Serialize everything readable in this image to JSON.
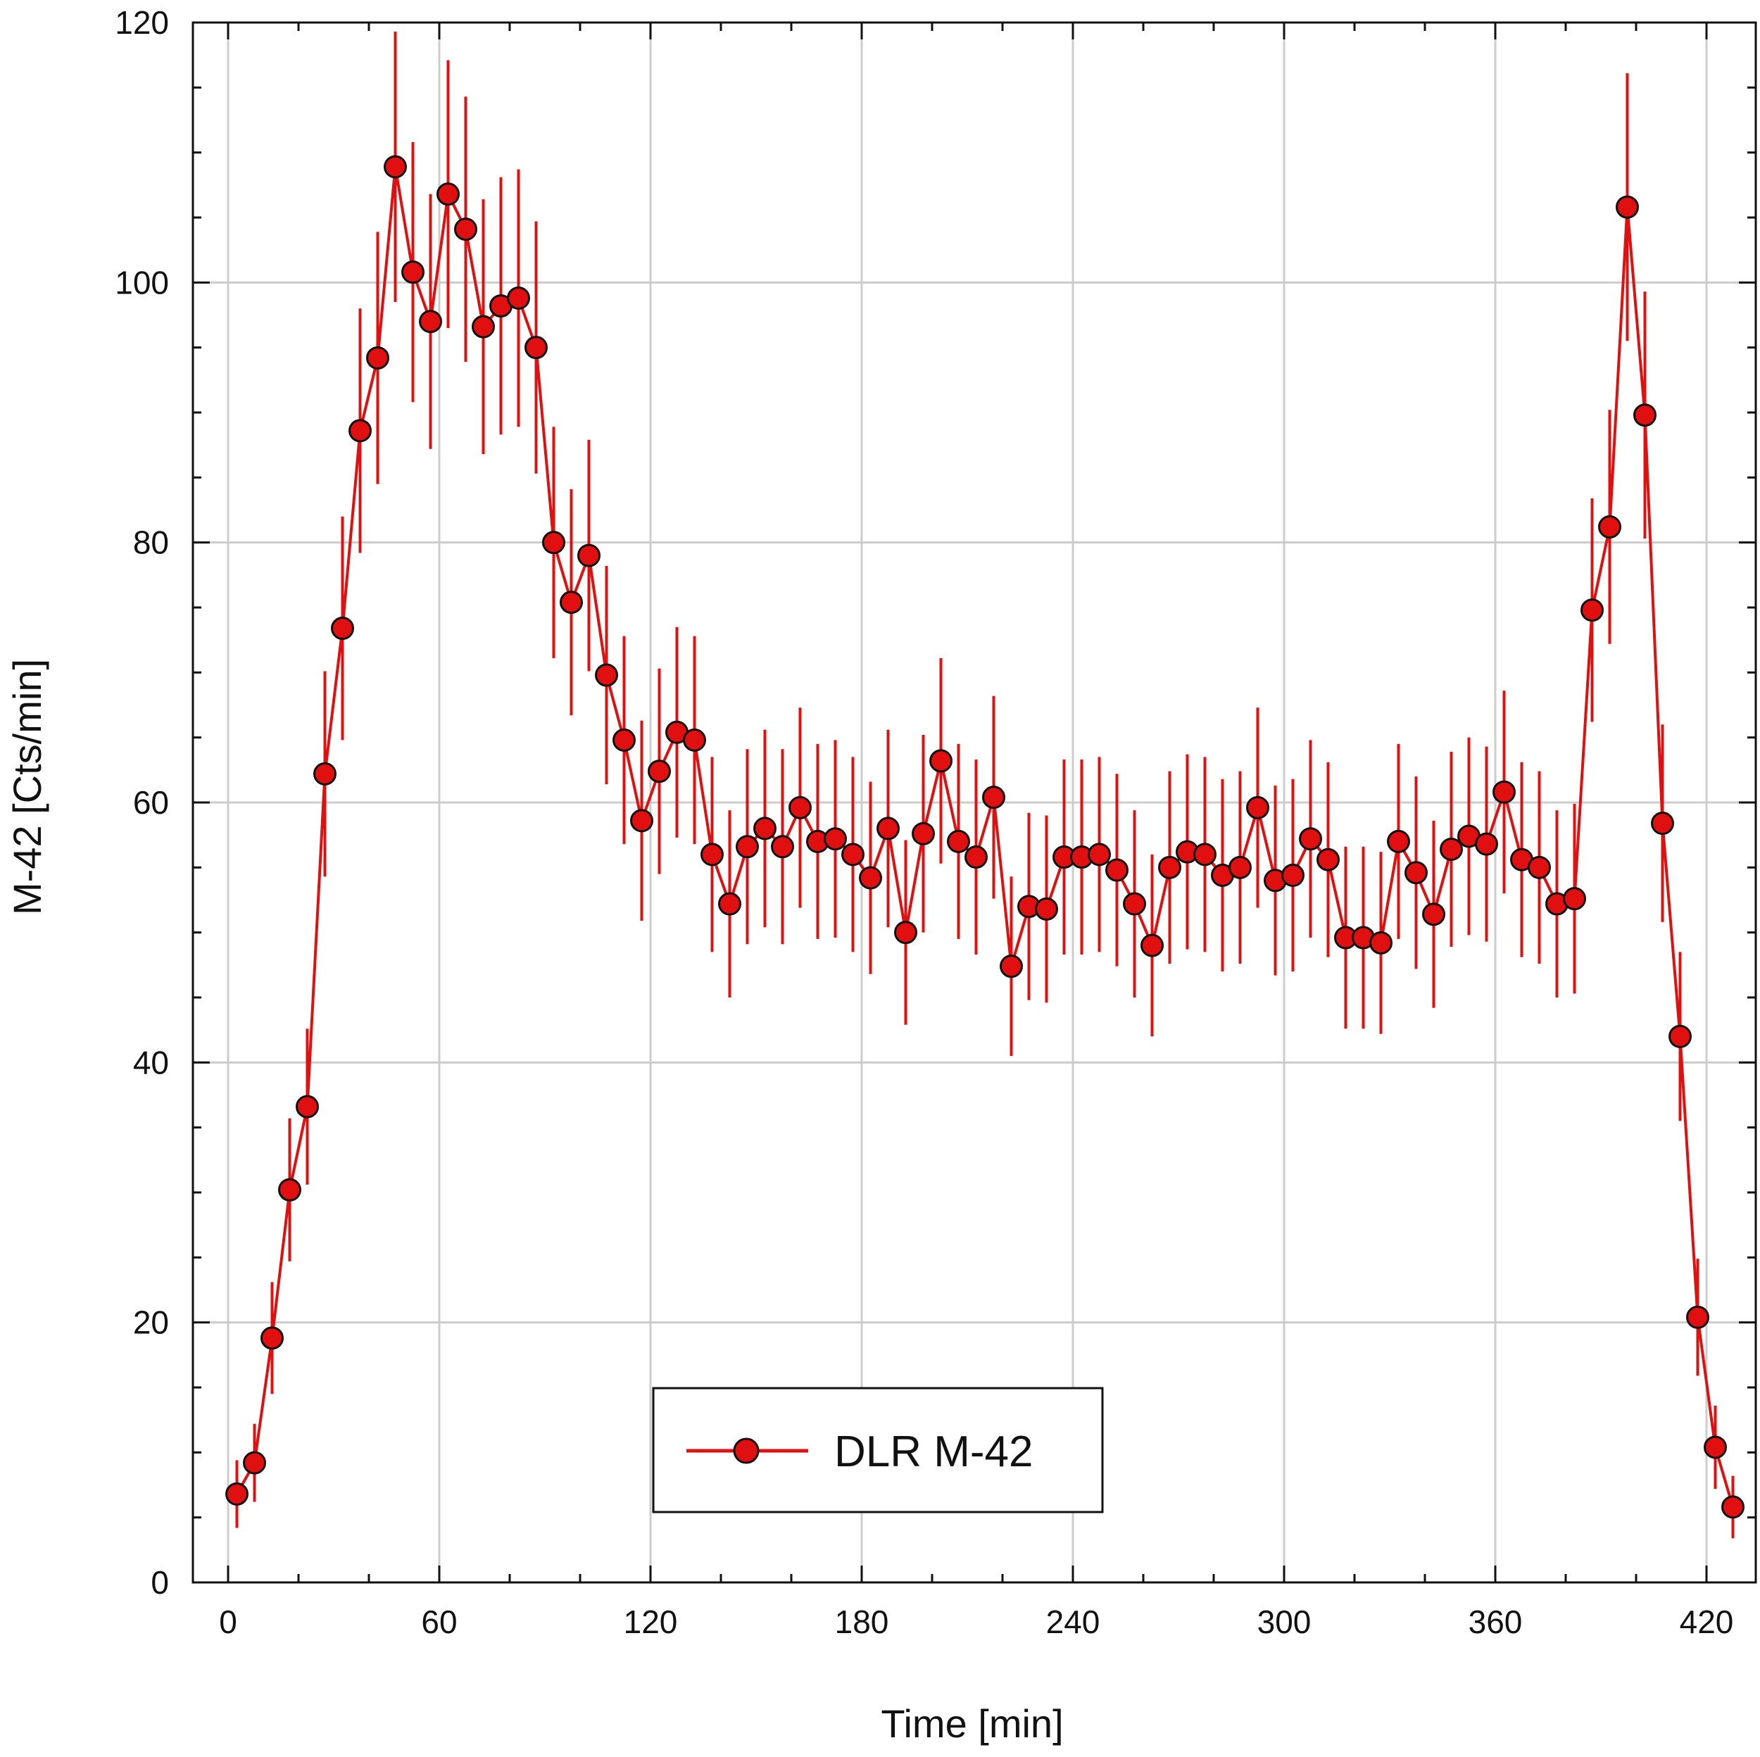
{
  "chart_data": {
    "type": "scatter",
    "xlabel": "Time [min]",
    "ylabel": "M-42 [Cts/min]",
    "xlim": [
      -10,
      434
    ],
    "ylim": [
      0,
      120
    ],
    "xticks": [
      0,
      60,
      120,
      180,
      240,
      300,
      360,
      420
    ],
    "yticks": [
      0,
      20,
      40,
      60,
      80,
      100,
      120
    ],
    "grid": true,
    "legend_position": "bottom-center",
    "colors": {
      "marker": "#e01010",
      "errorbar": "#e01010",
      "grid": "#cccccc"
    },
    "series": [
      {
        "name": "DLR M-42",
        "x": [
          2.5,
          7.5,
          12.5,
          17.5,
          22.5,
          27.5,
          32.5,
          37.5,
          42.5,
          47.5,
          52.5,
          57.5,
          62.5,
          67.5,
          72.5,
          77.5,
          82.5,
          87.5,
          92.5,
          97.5,
          102.5,
          107.5,
          112.5,
          117.5,
          122.5,
          127.5,
          132.5,
          137.5,
          142.5,
          147.5,
          152.5,
          157.5,
          162.5,
          167.5,
          172.5,
          177.5,
          182.5,
          187.5,
          192.5,
          197.5,
          202.5,
          207.5,
          212.5,
          217.5,
          222.5,
          227.5,
          232.5,
          237.5,
          242.5,
          247.5,
          252.5,
          257.5,
          262.5,
          267.5,
          272.5,
          277.5,
          282.5,
          287.5,
          292.5,
          297.5,
          302.5,
          307.5,
          312.5,
          317.5,
          322.5,
          327.5,
          332.5,
          337.5,
          342.5,
          347.5,
          352.5,
          357.5,
          362.5,
          367.5,
          372.5,
          377.5,
          382.5,
          387.5,
          392.5,
          397.5,
          402.5,
          407.5,
          412.5,
          417.5,
          422.5,
          427.5
        ],
        "y": [
          6.8,
          9.2,
          18.8,
          30.2,
          36.6,
          62.2,
          73.4,
          88.6,
          94.2,
          108.9,
          100.8,
          97.0,
          106.8,
          104.1,
          96.6,
          98.2,
          98.8,
          95.0,
          80.0,
          75.4,
          79.0,
          69.8,
          64.8,
          58.6,
          62.4,
          65.4,
          64.8,
          56.0,
          52.2,
          56.6,
          58.0,
          56.6,
          59.6,
          57.0,
          57.2,
          56.0,
          54.2,
          58.0,
          50.0,
          57.6,
          63.2,
          57.0,
          55.8,
          60.4,
          47.4,
          52.0,
          51.8,
          55.8,
          55.8,
          56.0,
          54.8,
          52.2,
          49.0,
          55.0,
          56.2,
          56.0,
          54.4,
          55.0,
          59.6,
          54.0,
          54.4,
          57.2,
          55.6,
          49.6,
          49.6,
          49.2,
          57.0,
          54.6,
          51.4,
          56.4,
          57.4,
          56.8,
          60.8,
          55.6,
          55.0,
          52.2,
          52.6,
          74.8,
          81.2,
          105.8,
          89.8,
          58.4,
          42.0,
          20.4,
          10.4,
          5.8
        ],
        "err": [
          2.6,
          3.0,
          4.3,
          5.5,
          6.0,
          7.9,
          8.6,
          9.4,
          9.7,
          10.4,
          10.0,
          9.8,
          10.3,
          10.2,
          9.8,
          9.9,
          9.9,
          9.7,
          8.9,
          8.7,
          8.9,
          8.4,
          8.0,
          7.7,
          7.9,
          8.1,
          8.0,
          7.5,
          7.2,
          7.5,
          7.6,
          7.5,
          7.7,
          7.5,
          7.6,
          7.5,
          7.4,
          7.6,
          7.1,
          7.6,
          7.9,
          7.5,
          7.5,
          7.8,
          6.9,
          7.2,
          7.2,
          7.5,
          7.5,
          7.5,
          7.4,
          7.2,
          7.0,
          7.4,
          7.5,
          7.5,
          7.4,
          7.4,
          7.7,
          7.3,
          7.4,
          7.6,
          7.5,
          7.0,
          7.0,
          7.0,
          7.5,
          7.4,
          7.2,
          7.5,
          7.6,
          7.5,
          7.8,
          7.5,
          7.4,
          7.2,
          7.3,
          8.6,
          9.0,
          10.3,
          9.5,
          7.6,
          6.5,
          4.5,
          3.2,
          2.4
        ]
      }
    ]
  }
}
